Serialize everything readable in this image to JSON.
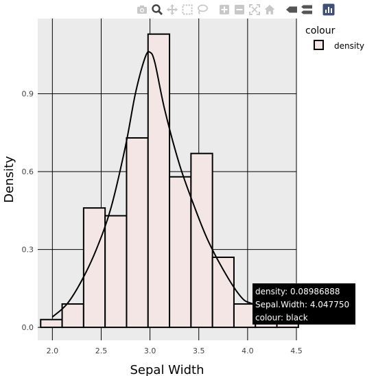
{
  "modebar": {
    "icons": [
      "camera-icon",
      "zoom-icon",
      "pan-icon",
      "box-select-icon",
      "lasso-icon",
      "zoom-in-icon",
      "zoom-out-icon",
      "autoscale-icon",
      "home-icon",
      "hover-closest-icon",
      "hover-compare-icon",
      "plotly-logo-icon"
    ]
  },
  "colors": {
    "panel": "#ebebeb",
    "grid": "#000000",
    "bar_fill": "#f5e6e6",
    "bar_stroke": "#000000",
    "line": "#000000",
    "tooltip_bg": "#000000",
    "tooltip_text": "#ffffff"
  },
  "legend": {
    "title": "colour",
    "items": [
      "density"
    ]
  },
  "tooltip": {
    "lines": [
      "density: 0.08986888",
      "Sepal.Width: 4.047750",
      "colour: black"
    ]
  },
  "chart_data": {
    "type": "bar",
    "xlabel": "Sepal Width",
    "ylabel": "Density",
    "xlim": [
      1.85,
      4.5
    ],
    "ylim": [
      -0.05,
      1.19
    ],
    "xticks": [
      2.0,
      2.5,
      3.0,
      3.5,
      4.0,
      4.5
    ],
    "xtick_labels": [
      "2.0",
      "2.5",
      "3.0",
      "3.5",
      "4.0",
      "4.5"
    ],
    "yticks": [
      0.0,
      0.3,
      0.6,
      0.9
    ],
    "ytick_labels": [
      "0.0",
      "0.3",
      "0.6",
      "0.9"
    ],
    "grid": true,
    "legend_position": "right",
    "histogram": {
      "name": "density",
      "bins": [
        {
          "x0": 1.88,
          "x1": 2.1,
          "density": 0.03
        },
        {
          "x0": 2.1,
          "x1": 2.32,
          "density": 0.09
        },
        {
          "x0": 2.32,
          "x1": 2.54,
          "density": 0.46
        },
        {
          "x0": 2.54,
          "x1": 2.76,
          "density": 0.43
        },
        {
          "x0": 2.76,
          "x1": 2.98,
          "density": 0.73
        },
        {
          "x0": 2.98,
          "x1": 3.2,
          "density": 1.13
        },
        {
          "x0": 3.2,
          "x1": 3.42,
          "density": 0.58
        },
        {
          "x0": 3.42,
          "x1": 3.64,
          "density": 0.67
        },
        {
          "x0": 3.64,
          "x1": 3.86,
          "density": 0.27
        },
        {
          "x0": 3.86,
          "x1": 4.08,
          "density": 0.09
        },
        {
          "x0": 4.08,
          "x1": 4.3,
          "density": 0.06
        },
        {
          "x0": 4.3,
          "x1": 4.52,
          "density": 0.03
        }
      ]
    },
    "density_curve": {
      "x": [
        2.0,
        2.15,
        2.3,
        2.45,
        2.6,
        2.75,
        2.85,
        2.95,
        3.0,
        3.05,
        3.15,
        3.3,
        3.45,
        3.6,
        3.8,
        3.95,
        4.05,
        4.2,
        4.4
      ],
      "y": [
        0.04,
        0.09,
        0.18,
        0.3,
        0.46,
        0.7,
        0.9,
        1.04,
        1.06,
        1.02,
        0.84,
        0.63,
        0.47,
        0.33,
        0.19,
        0.11,
        0.09,
        0.05,
        0.02
      ]
    }
  }
}
